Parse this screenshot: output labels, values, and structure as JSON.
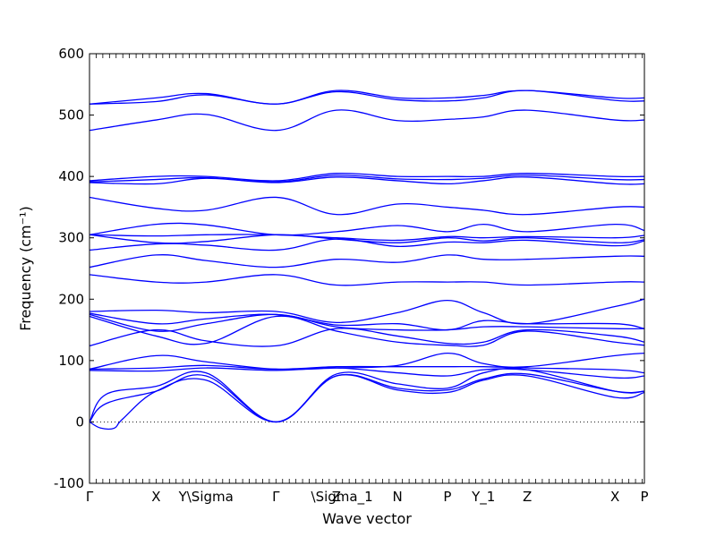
{
  "chart_data": {
    "type": "line",
    "title": "",
    "xlabel": "Wave vector",
    "ylabel": "Frequency (cm⁻¹)",
    "ylim": [
      -100,
      600
    ],
    "xlim": [
      0,
      100
    ],
    "yticks": [
      -100,
      0,
      100,
      200,
      300,
      400,
      500,
      600
    ],
    "grid": false,
    "zero_line": true,
    "line_color": "#0000ff",
    "high_symmetry_points": [
      {
        "label": "Γ",
        "x": 0
      },
      {
        "label": "X",
        "x": 12
      },
      {
        "label": "Y\\Sigma",
        "x": 21
      },
      {
        "label": "Γ",
        "x": 33.6
      },
      {
        "label": "Z",
        "x": 44.5
      },
      {
        "label": "\\Sigma_1",
        "x": 45.5
      },
      {
        "label": "N",
        "x": 55.5
      },
      {
        "label": "P",
        "x": 64.5
      },
      {
        "label": "Y_1",
        "x": 71
      },
      {
        "label": "Z",
        "x": 78.9
      },
      {
        "label": "X",
        "x": 94.7
      },
      {
        "label": "P",
        "x": 100
      }
    ],
    "series": [
      {
        "x": [
          0,
          12,
          21,
          33.6,
          44.5,
          55.5,
          64.5,
          71,
          78.9,
          94.7,
          100
        ],
        "values": [
          518,
          528,
          535,
          518,
          540,
          528,
          528,
          532,
          540,
          528,
          528
        ]
      },
      {
        "x": [
          0,
          12,
          21,
          33.6,
          44.5,
          55.5,
          64.5,
          71,
          78.9,
          94.7,
          100
        ],
        "values": [
          518,
          522,
          533,
          518,
          538,
          525,
          523,
          528,
          540,
          524,
          523
        ]
      },
      {
        "x": [
          0,
          12,
          21,
          33.6,
          44.5,
          55.5,
          64.5,
          71,
          78.9,
          94.7,
          100
        ],
        "values": [
          475,
          492,
          501,
          475,
          508,
          491,
          493,
          497,
          508,
          492,
          492
        ]
      },
      {
        "x": [
          0,
          12,
          21,
          33.6,
          44.5,
          55.5,
          64.5,
          71,
          78.9,
          94.7,
          100
        ],
        "values": [
          393,
          400,
          400,
          393,
          405,
          400,
          400,
          400,
          405,
          400,
          400
        ]
      },
      {
        "x": [
          0,
          12,
          21,
          33.6,
          44.5,
          55.5,
          64.5,
          71,
          78.9,
          94.7,
          100
        ],
        "values": [
          391,
          395,
          398,
          391,
          402,
          396,
          395,
          397,
          402,
          395,
          395
        ]
      },
      {
        "x": [
          0,
          12,
          21,
          33.6,
          44.5,
          55.5,
          64.5,
          71,
          78.9,
          94.7,
          100
        ],
        "values": [
          390,
          388,
          397,
          390,
          399,
          393,
          388,
          393,
          399,
          388,
          388
        ]
      },
      {
        "x": [
          0,
          12,
          21,
          33.6,
          44.5,
          55.5,
          64.5,
          71,
          78.9,
          94.7,
          100
        ],
        "values": [
          366,
          348,
          345,
          366,
          338,
          355,
          350,
          345,
          338,
          350,
          350
        ]
      },
      {
        "x": [
          0,
          12,
          21,
          33.6,
          44.5,
          55.5,
          64.5,
          71,
          78.9,
          94.7,
          100
        ],
        "values": [
          305,
          322,
          321,
          305,
          310,
          320,
          310,
          322,
          310,
          322,
          312
        ]
      },
      {
        "x": [
          0,
          12,
          21,
          33.6,
          44.5,
          55.5,
          64.5,
          71,
          78.9,
          94.7,
          100
        ],
        "values": [
          305,
          303,
          305,
          305,
          300,
          296,
          302,
          300,
          302,
          300,
          304
        ]
      },
      {
        "x": [
          0,
          12,
          21,
          33.6,
          44.5,
          55.5,
          64.5,
          71,
          78.9,
          94.7,
          100
        ],
        "values": [
          305,
          292,
          294,
          305,
          298,
          292,
          300,
          295,
          300,
          292,
          297
        ]
      },
      {
        "x": [
          0,
          12,
          21,
          33.6,
          44.5,
          55.5,
          64.5,
          71,
          78.9,
          94.7,
          100
        ],
        "values": [
          280,
          290,
          288,
          280,
          298,
          286,
          293,
          292,
          296,
          287,
          295
        ]
      },
      {
        "x": [
          0,
          12,
          21,
          33.6,
          44.5,
          55.5,
          64.5,
          71,
          78.9,
          94.7,
          100
        ],
        "values": [
          252,
          272,
          263,
          252,
          265,
          260,
          272,
          265,
          265,
          270,
          270
        ]
      },
      {
        "x": [
          0,
          12,
          21,
          33.6,
          44.5,
          55.5,
          64.5,
          71,
          78.9,
          94.7,
          100
        ],
        "values": [
          240,
          228,
          228,
          240,
          223,
          228,
          228,
          228,
          223,
          228,
          228
        ]
      },
      {
        "x": [
          0,
          12,
          21,
          33.6,
          44.5,
          55.5,
          64.5,
          71,
          78.9,
          94.7,
          100
        ],
        "values": [
          180,
          182,
          178,
          180,
          162,
          178,
          198,
          178,
          160,
          188,
          200
        ]
      },
      {
        "x": [
          0,
          12,
          21,
          33.6,
          44.5,
          55.5,
          64.5,
          71,
          78.9,
          94.7,
          100
        ],
        "values": [
          177,
          160,
          168,
          175,
          158,
          160,
          150,
          165,
          160,
          160,
          152
        ]
      },
      {
        "x": [
          0,
          12,
          21,
          33.6,
          44.5,
          55.5,
          64.5,
          71,
          78.9,
          94.7,
          100
        ],
        "values": [
          175,
          148,
          160,
          175,
          155,
          150,
          150,
          155,
          155,
          152,
          152
        ]
      },
      {
        "x": [
          0,
          12,
          21,
          33.6,
          44.5,
          55.5,
          64.5,
          71,
          78.9,
          94.7,
          100
        ],
        "values": [
          124,
          150,
          132,
          124,
          152,
          140,
          128,
          130,
          150,
          140,
          130
        ]
      },
      {
        "x": [
          0,
          12,
          21,
          33.6,
          44.5,
          55.5,
          64.5,
          71,
          78.9,
          94.7,
          100
        ],
        "values": [
          172,
          140,
          128,
          172,
          148,
          130,
          125,
          125,
          148,
          130,
          125
        ]
      },
      {
        "x": [
          0,
          12,
          21,
          33.6,
          44.5,
          55.5,
          64.5,
          71,
          78.9,
          94.7,
          100
        ],
        "values": [
          86,
          108,
          98,
          86,
          88,
          92,
          112,
          95,
          90,
          108,
          112
        ]
      },
      {
        "x": [
          0,
          12,
          21,
          33.6,
          44.5,
          55.5,
          64.5,
          71,
          78.9,
          94.7,
          100
        ],
        "values": [
          86,
          88,
          92,
          86,
          90,
          90,
          90,
          90,
          88,
          85,
          80
        ]
      },
      {
        "x": [
          0,
          12,
          21,
          33.6,
          44.5,
          55.5,
          64.5,
          71,
          78.9,
          94.7,
          100
        ],
        "values": [
          84,
          83,
          88,
          84,
          88,
          80,
          75,
          85,
          85,
          72,
          75
        ]
      },
      {
        "x": [
          0,
          3,
          12,
          21,
          33.6,
          44.5,
          55.5,
          64.5,
          71,
          78.9,
          94.7,
          100
        ],
        "values": [
          0,
          45,
          58,
          80,
          0,
          78,
          62,
          55,
          80,
          85,
          50,
          50
        ]
      },
      {
        "x": [
          0,
          3,
          12,
          21,
          33.6,
          44.5,
          55.5,
          64.5,
          71,
          78.9,
          94.7,
          100
        ],
        "values": [
          0,
          30,
          50,
          75,
          0,
          75,
          55,
          52,
          70,
          78,
          50,
          50
        ]
      },
      {
        "x": [
          0,
          2,
          4.5,
          6,
          12,
          21,
          33.6,
          44.5,
          55.5,
          64.5,
          71,
          78.9,
          94.7,
          100
        ],
        "values": [
          0,
          -10,
          -10,
          5,
          50,
          68,
          0,
          75,
          52,
          48,
          68,
          75,
          40,
          48
        ]
      }
    ]
  }
}
